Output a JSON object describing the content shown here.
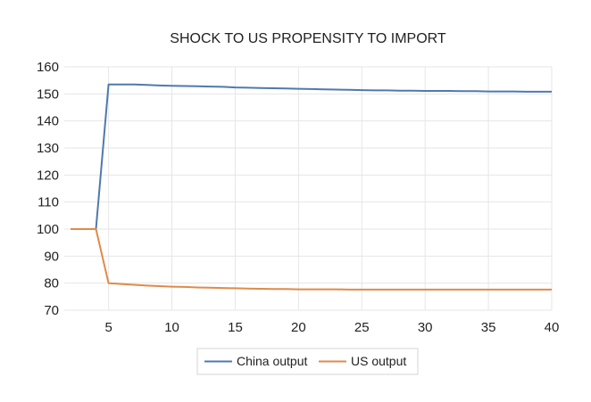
{
  "chart_data": {
    "type": "line",
    "title": "SHOCK TO US PROPENSITY TO IMPORT",
    "xlabel": "",
    "ylabel": "",
    "xlim": [
      1.5,
      40
    ],
    "ylim": [
      70,
      160
    ],
    "x_ticks": [
      5,
      10,
      15,
      20,
      25,
      30,
      35,
      40
    ],
    "y_ticks": [
      70,
      80,
      90,
      100,
      110,
      120,
      130,
      140,
      150,
      160
    ],
    "grid": true,
    "legend_position": "bottom",
    "series": [
      {
        "name": "China output",
        "color": "#4f79b0",
        "x": [
          2,
          3,
          4,
          5,
          6,
          7,
          8,
          9,
          10,
          11,
          12,
          13,
          14,
          15,
          16,
          17,
          18,
          19,
          20,
          21,
          22,
          23,
          24,
          25,
          26,
          27,
          28,
          29,
          30,
          31,
          32,
          33,
          34,
          35,
          36,
          37,
          38,
          39,
          40
        ],
        "values": [
          100,
          100,
          100,
          153.5,
          153.5,
          153.5,
          153.3,
          153.1,
          153,
          152.9,
          152.8,
          152.7,
          152.6,
          152.4,
          152.3,
          152.2,
          152.1,
          152,
          151.9,
          151.8,
          151.7,
          151.6,
          151.5,
          151.4,
          151.3,
          151.3,
          151.2,
          151.2,
          151.1,
          151.1,
          151.1,
          151,
          151,
          150.9,
          150.9,
          150.9,
          150.8,
          150.8,
          150.8
        ]
      },
      {
        "name": "US output",
        "color": "#e08a4a",
        "x": [
          2,
          3,
          4,
          5,
          6,
          7,
          8,
          9,
          10,
          11,
          12,
          13,
          14,
          15,
          16,
          17,
          18,
          19,
          20,
          21,
          22,
          23,
          24,
          25,
          26,
          27,
          28,
          29,
          30,
          31,
          32,
          33,
          34,
          35,
          36,
          37,
          38,
          39,
          40
        ],
        "values": [
          100,
          100,
          100,
          80,
          79.7,
          79.4,
          79.1,
          78.9,
          78.7,
          78.6,
          78.4,
          78.3,
          78.2,
          78.1,
          78,
          77.9,
          77.8,
          77.8,
          77.7,
          77.7,
          77.7,
          77.7,
          77.6,
          77.6,
          77.6,
          77.6,
          77.6,
          77.6,
          77.6,
          77.6,
          77.6,
          77.6,
          77.6,
          77.6,
          77.6,
          77.6,
          77.6,
          77.6,
          77.6
        ]
      }
    ]
  }
}
